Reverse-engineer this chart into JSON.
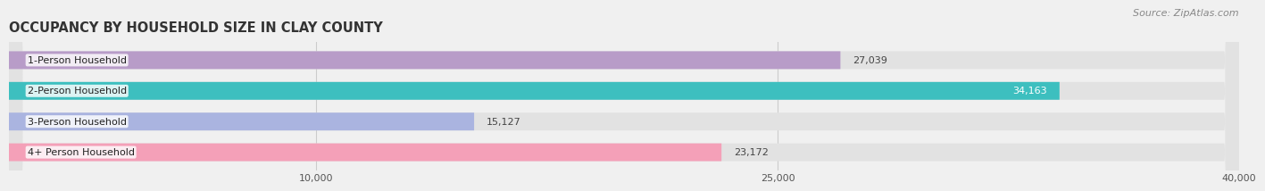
{
  "title": "OCCUPANCY BY HOUSEHOLD SIZE IN CLAY COUNTY",
  "source": "Source: ZipAtlas.com",
  "categories": [
    "1-Person Household",
    "2-Person Household",
    "3-Person Household",
    "4+ Person Household"
  ],
  "values": [
    27039,
    34163,
    15127,
    23172
  ],
  "bar_colors": [
    "#b89cc8",
    "#3dbfbf",
    "#aab4e0",
    "#f4a0b8"
  ],
  "xlim": [
    0,
    40000
  ],
  "xticks": [
    10000,
    25000,
    40000
  ],
  "xtick_labels": [
    "10,000",
    "25,000",
    "40,000"
  ],
  "value_labels": [
    "27,039",
    "34,163",
    "15,127",
    "23,172"
  ],
  "value_label_colors": [
    "#444444",
    "#ffffff",
    "#444444",
    "#444444"
  ],
  "background_color": "#f0f0f0",
  "bar_background": "#e2e2e2",
  "title_fontsize": 10.5,
  "source_fontsize": 8,
  "label_fontsize": 8,
  "value_fontsize": 8,
  "bar_height": 0.58
}
